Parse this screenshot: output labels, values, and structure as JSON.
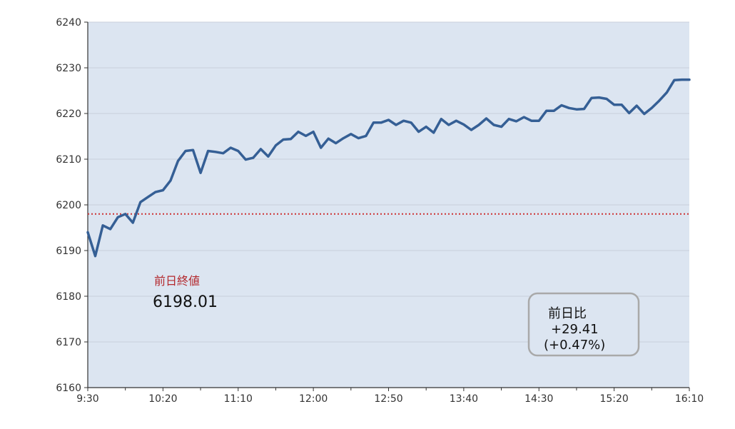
{
  "chart_data": {
    "type": "line",
    "title": "",
    "xlabel": "",
    "ylabel": "",
    "ylim": [
      6160,
      6240
    ],
    "yticks": [
      6160,
      6170,
      6180,
      6190,
      6200,
      6210,
      6220,
      6230,
      6240
    ],
    "x_tick_labels": [
      "9:30",
      "10:20",
      "11:10",
      "12:00",
      "12:50",
      "13:40",
      "14:30",
      "15:20",
      "16:10"
    ],
    "x_start_minutes": 570,
    "x_end_minutes": 970,
    "x_step_minutes": 5,
    "grid": true,
    "colors": {
      "line": "#355f95",
      "reference": "#cc3333",
      "plot_bg": "#dce5f1",
      "box_border": "#a9a9a9"
    },
    "series": [
      {
        "values": [
          6194.0,
          6188.8,
          6195.5,
          6194.7,
          6197.3,
          6198.0,
          6196.1,
          6200.6,
          6201.7,
          6202.8,
          6203.2,
          6205.3,
          6209.6,
          6211.8,
          6212.0,
          6207.0,
          6211.8,
          6211.6,
          6211.3,
          6212.5,
          6211.8,
          6209.9,
          6210.3,
          6212.2,
          6210.6,
          6213.0,
          6214.3,
          6214.4,
          6216.0,
          6215.1,
          6216.0,
          6212.5,
          6214.5,
          6213.5,
          6214.6,
          6215.5,
          6214.6,
          6215.1,
          6218.0,
          6218.0,
          6218.6,
          6217.5,
          6218.4,
          6218.0,
          6216.0,
          6217.1,
          6215.8,
          6218.8,
          6217.5,
          6218.4,
          6217.6,
          6216.4,
          6217.5,
          6218.9,
          6217.5,
          6217.1,
          6218.8,
          6218.3,
          6219.2,
          6218.4,
          6218.4,
          6220.6,
          6220.6,
          6221.8,
          6221.2,
          6220.9,
          6221.0,
          6223.4,
          6223.5,
          6223.2,
          6221.9,
          6221.9,
          6220.1,
          6221.7,
          6219.9,
          6221.2,
          6222.8,
          6224.6,
          6227.3,
          6227.4,
          6227.4
        ]
      }
    ],
    "reference": {
      "label": "前日終値",
      "value": 6198.01,
      "value_text": "6198.01"
    },
    "change_box": {
      "label": "前日比",
      "change": "+29.41",
      "percent": "(+0.47%)"
    }
  }
}
